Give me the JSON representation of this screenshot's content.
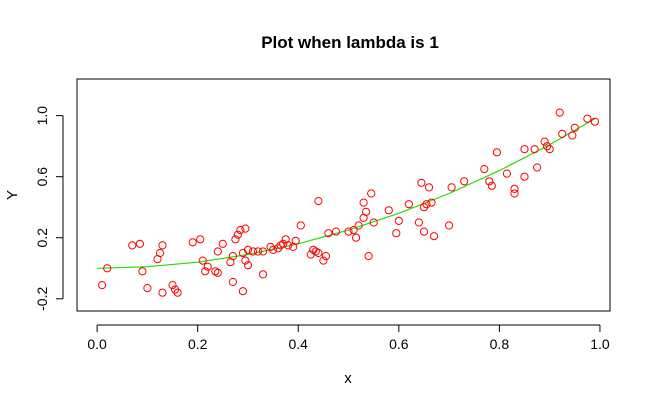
{
  "chart_data": {
    "type": "scatter",
    "title": "Plot when lambda is 1",
    "xlabel": "x",
    "ylabel": "Y",
    "xlim": [
      -0.04,
      1.02
    ],
    "ylim": [
      -0.28,
      1.24
    ],
    "xticks": [
      0.0,
      0.2,
      0.4,
      0.6,
      0.8,
      1.0
    ],
    "xtick_labels": [
      "0.0",
      "0.2",
      "0.4",
      "0.6",
      "0.8",
      "1.0"
    ],
    "yticks": [
      -0.2,
      0.2,
      0.6,
      1.0
    ],
    "ytick_labels": [
      "-0.2",
      "0.2",
      "0.6",
      "1.0"
    ],
    "grid": false,
    "legend": "none",
    "point_color": "#ff0000",
    "curve_color": "#22dd00",
    "points": [
      [
        0.01,
        -0.11
      ],
      [
        0.02,
        0.0
      ],
      [
        0.07,
        0.15
      ],
      [
        0.085,
        0.16
      ],
      [
        0.09,
        -0.02
      ],
      [
        0.1,
        -0.13
      ],
      [
        0.12,
        0.06
      ],
      [
        0.125,
        0.1
      ],
      [
        0.13,
        0.15
      ],
      [
        0.13,
        -0.16
      ],
      [
        0.15,
        -0.11
      ],
      [
        0.155,
        -0.14
      ],
      [
        0.16,
        -0.16
      ],
      [
        0.19,
        0.17
      ],
      [
        0.205,
        0.19
      ],
      [
        0.21,
        0.05
      ],
      [
        0.215,
        -0.02
      ],
      [
        0.22,
        0.01
      ],
      [
        0.235,
        -0.02
      ],
      [
        0.24,
        -0.03
      ],
      [
        0.24,
        0.11
      ],
      [
        0.25,
        0.16
      ],
      [
        0.265,
        0.04
      ],
      [
        0.27,
        0.08
      ],
      [
        0.27,
        -0.09
      ],
      [
        0.275,
        0.19
      ],
      [
        0.28,
        0.22
      ],
      [
        0.285,
        0.25
      ],
      [
        0.29,
        -0.15
      ],
      [
        0.29,
        0.1
      ],
      [
        0.295,
        0.05
      ],
      [
        0.295,
        0.26
      ],
      [
        0.3,
        0.12
      ],
      [
        0.3,
        0.02
      ],
      [
        0.31,
        0.11
      ],
      [
        0.32,
        0.11
      ],
      [
        0.33,
        -0.04
      ],
      [
        0.33,
        0.11
      ],
      [
        0.345,
        0.14
      ],
      [
        0.35,
        0.12
      ],
      [
        0.36,
        0.13
      ],
      [
        0.365,
        0.15
      ],
      [
        0.37,
        0.16
      ],
      [
        0.375,
        0.19
      ],
      [
        0.38,
        0.15
      ],
      [
        0.39,
        0.14
      ],
      [
        0.395,
        0.18
      ],
      [
        0.405,
        0.28
      ],
      [
        0.425,
        0.09
      ],
      [
        0.43,
        0.12
      ],
      [
        0.435,
        0.11
      ],
      [
        0.44,
        0.1
      ],
      [
        0.44,
        0.44
      ],
      [
        0.45,
        0.05
      ],
      [
        0.455,
        0.08
      ],
      [
        0.46,
        0.23
      ],
      [
        0.475,
        0.24
      ],
      [
        0.5,
        0.24
      ],
      [
        0.51,
        0.25
      ],
      [
        0.515,
        0.2
      ],
      [
        0.52,
        0.28
      ],
      [
        0.53,
        0.33
      ],
      [
        0.53,
        0.43
      ],
      [
        0.535,
        0.37
      ],
      [
        0.54,
        0.08
      ],
      [
        0.545,
        0.49
      ],
      [
        0.55,
        0.3
      ],
      [
        0.58,
        0.38
      ],
      [
        0.595,
        0.23
      ],
      [
        0.6,
        0.31
      ],
      [
        0.62,
        0.42
      ],
      [
        0.64,
        0.3
      ],
      [
        0.645,
        0.56
      ],
      [
        0.65,
        0.4
      ],
      [
        0.65,
        0.24
      ],
      [
        0.655,
        0.42
      ],
      [
        0.66,
        0.53
      ],
      [
        0.665,
        0.43
      ],
      [
        0.67,
        0.21
      ],
      [
        0.7,
        0.28
      ],
      [
        0.705,
        0.53
      ],
      [
        0.73,
        0.57
      ],
      [
        0.77,
        0.65
      ],
      [
        0.78,
        0.57
      ],
      [
        0.785,
        0.54
      ],
      [
        0.795,
        0.76
      ],
      [
        0.815,
        0.62
      ],
      [
        0.83,
        0.52
      ],
      [
        0.83,
        0.49
      ],
      [
        0.85,
        0.6
      ],
      [
        0.85,
        0.78
      ],
      [
        0.87,
        0.78
      ],
      [
        0.875,
        0.66
      ],
      [
        0.89,
        0.83
      ],
      [
        0.895,
        0.8
      ],
      [
        0.9,
        0.78
      ],
      [
        0.92,
        1.02
      ],
      [
        0.925,
        0.88
      ],
      [
        0.945,
        0.87
      ],
      [
        0.95,
        0.92
      ],
      [
        0.975,
        0.98
      ],
      [
        0.99,
        0.96
      ]
    ],
    "curve": [
      [
        0.0,
        0.0
      ],
      [
        0.1,
        0.01
      ],
      [
        0.2,
        0.04
      ],
      [
        0.3,
        0.09
      ],
      [
        0.4,
        0.16
      ],
      [
        0.5,
        0.25
      ],
      [
        0.6,
        0.36
      ],
      [
        0.7,
        0.49
      ],
      [
        0.8,
        0.64
      ],
      [
        0.9,
        0.81
      ],
      [
        0.99,
        0.98
      ]
    ]
  }
}
